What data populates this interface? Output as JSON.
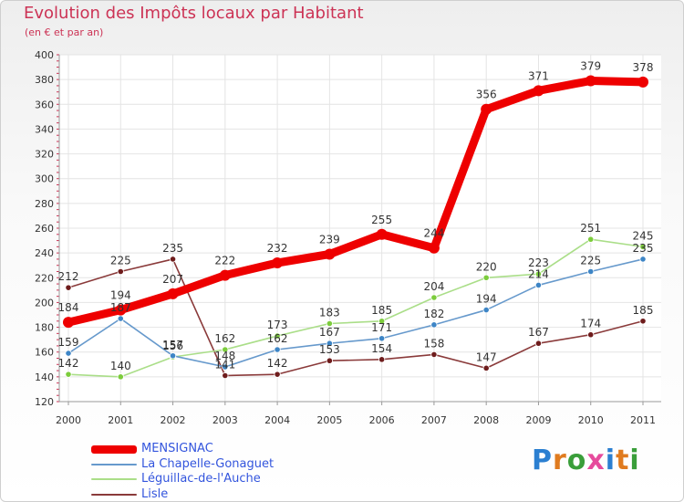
{
  "title": "Evolution des Impôts locaux par Habitant",
  "subtitle": "(en € et par an)",
  "logo": {
    "text": "Proxiti",
    "letter_colors": [
      "#2b7fd1",
      "#e07b1f",
      "#3a9e3a",
      "#e64a9c",
      "#2b7fd1",
      "#e07b1f",
      "#3a9e3a"
    ]
  },
  "chart_data": {
    "type": "line",
    "x": [
      "2000",
      "2001",
      "2002",
      "2003",
      "2004",
      "2005",
      "2006",
      "2007",
      "2008",
      "2009",
      "2010",
      "2011"
    ],
    "ylim": [
      120,
      400
    ],
    "yticks": [
      120,
      140,
      160,
      180,
      200,
      220,
      240,
      260,
      280,
      300,
      320,
      340,
      360,
      380,
      400
    ],
    "grid": true,
    "legend_position": "bottom-left",
    "series": [
      {
        "name": "MENSIGNAC",
        "color": "#ee0000",
        "point_color": "#ee0000",
        "label_color": "#333333",
        "values": [
          184,
          194,
          207,
          222,
          232,
          239,
          255,
          244,
          356,
          371,
          379,
          378
        ],
        "labels": [
          "184",
          "194",
          "207",
          "222",
          "232",
          "239",
          "255",
          "244",
          "356",
          "371",
          "379",
          "378"
        ]
      },
      {
        "name": "La Chapelle-Gonaguet",
        "color": "#6699cc",
        "point_color": "#3d85c6",
        "label_color": "#333333",
        "values": [
          159,
          187,
          157,
          148,
          162,
          167,
          171,
          182,
          194,
          214,
          225,
          235
        ],
        "labels": [
          "159",
          "187",
          "157",
          "148",
          "162",
          "167",
          "171",
          "182",
          "194",
          "214",
          "225",
          "235"
        ]
      },
      {
        "name": "Léguillac-de-l'Auche",
        "color": "#aade88",
        "point_color": "#7ccc3c",
        "label_color": "#333333",
        "values": [
          142,
          140,
          156,
          162,
          173,
          183,
          185,
          204,
          220,
          223,
          251,
          245
        ],
        "labels": [
          "142",
          "140",
          "156",
          "162",
          "173",
          "183",
          "185",
          "204",
          "220",
          "223",
          "251",
          "245"
        ]
      },
      {
        "name": "Lisle",
        "color": "#8a3a3a",
        "point_color": "#6e1c1c",
        "label_color": "#333333",
        "values": [
          212,
          225,
          235,
          141,
          142,
          153,
          154,
          158,
          147,
          167,
          174,
          185
        ],
        "labels": [
          "212",
          "225",
          "235",
          "141",
          "142",
          "153",
          "154",
          "158",
          "147",
          "167",
          "174",
          "185"
        ]
      }
    ]
  }
}
